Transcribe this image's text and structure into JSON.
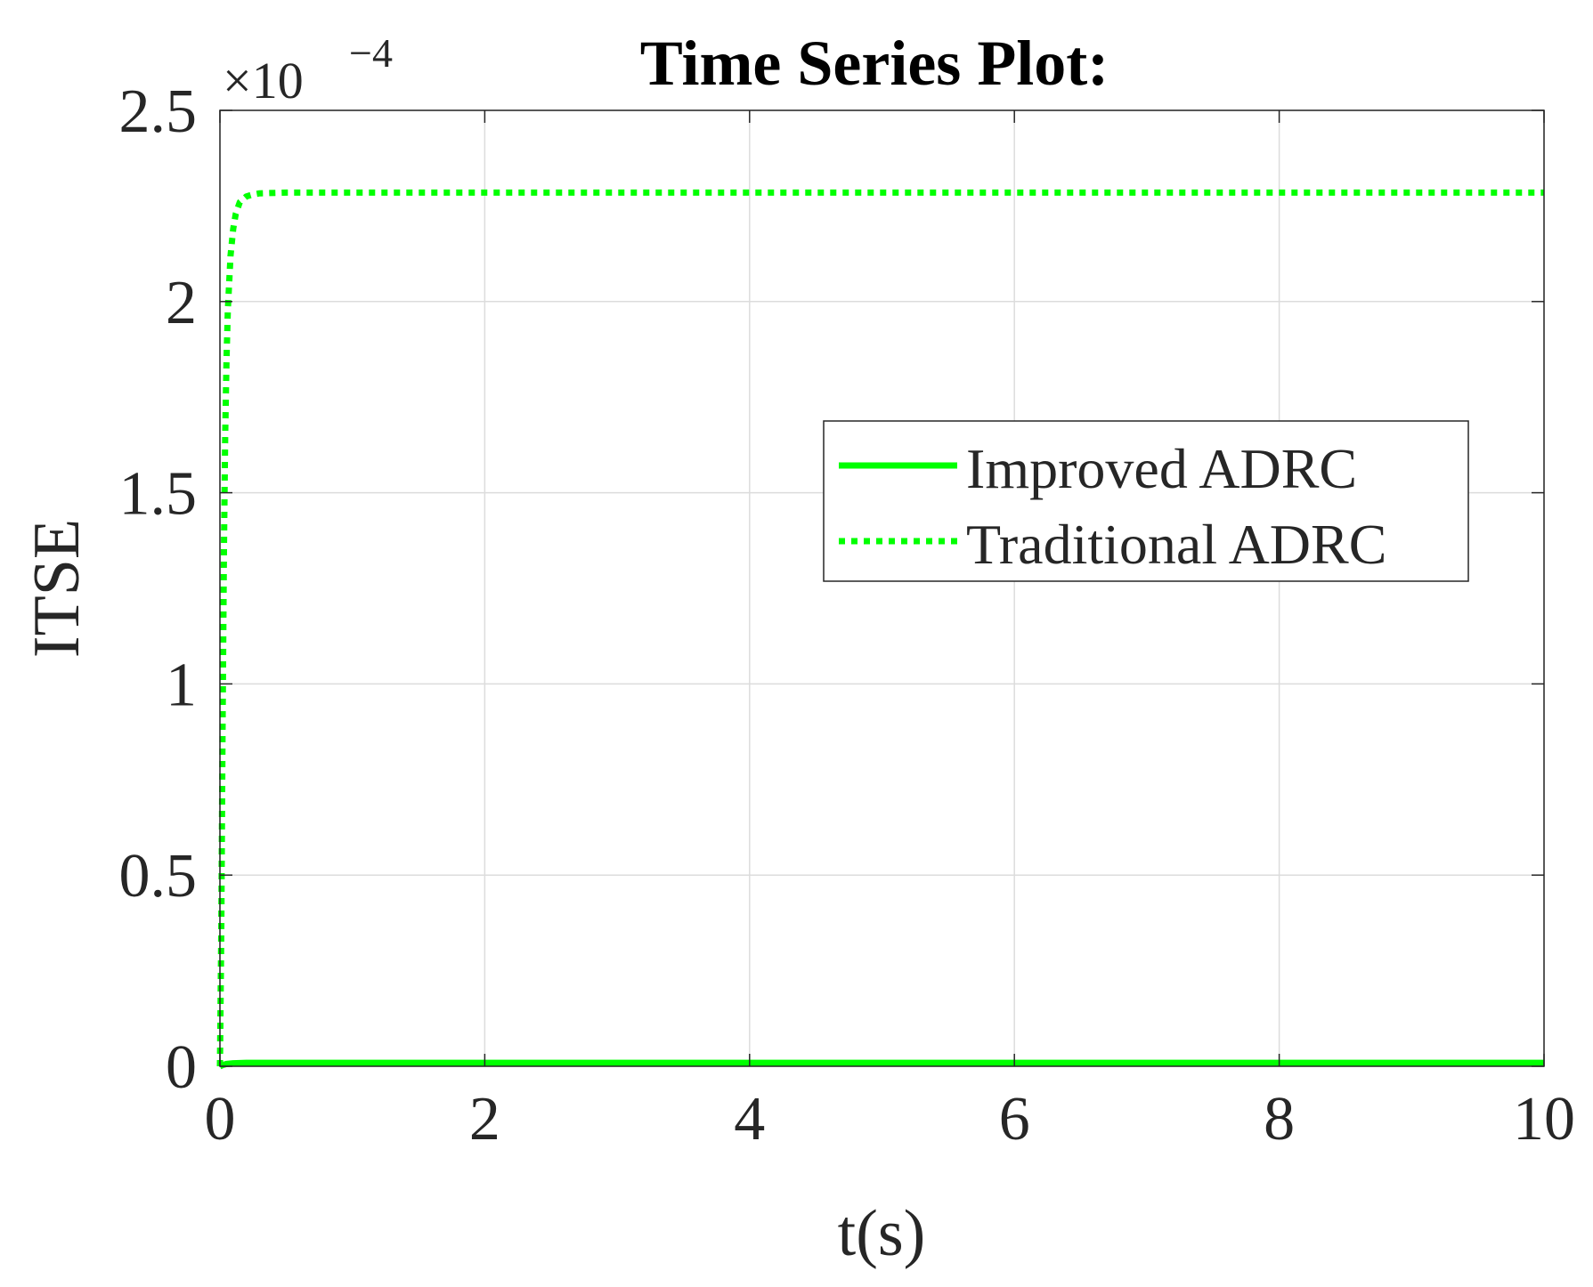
{
  "chart_data": {
    "type": "line",
    "title": "Time Series Plot:",
    "xlabel": "t(s)",
    "ylabel": "ITSE",
    "y_exponent_base": "×10",
    "y_exponent_power": "−4",
    "xlim": [
      0,
      10
    ],
    "ylim": [
      0,
      2.5
    ],
    "x_ticks": [
      0,
      2,
      4,
      6,
      8,
      10
    ],
    "x_tick_labels": [
      "0",
      "2",
      "4",
      "6",
      "8",
      "10"
    ],
    "y_ticks": [
      0,
      0.5,
      1,
      1.5,
      2,
      2.5
    ],
    "y_tick_labels": [
      "0",
      "0.5",
      "1",
      "1.5",
      "2",
      "2.5"
    ],
    "grid": true,
    "legend_position": "right-center",
    "series": [
      {
        "name": "Improved ADRC",
        "color": "#00ff00",
        "line_style": "solid",
        "x": [
          0,
          0.02,
          0.05,
          0.1,
          0.2,
          0.5,
          1,
          2,
          4,
          6,
          8,
          10
        ],
        "y": [
          0,
          0.003,
          0.006,
          0.008,
          0.009,
          0.009,
          0.009,
          0.009,
          0.009,
          0.009,
          0.009,
          0.009
        ]
      },
      {
        "name": "Traditional ADRC",
        "color": "#00ff00",
        "line_style": "dotted",
        "x": [
          0,
          0.01,
          0.02,
          0.03,
          0.04,
          0.05,
          0.06,
          0.08,
          0.1,
          0.12,
          0.15,
          0.2,
          0.25,
          0.3,
          0.5,
          1,
          2,
          4,
          6,
          8,
          10
        ],
        "y": [
          0,
          0.35,
          0.9,
          1.35,
          1.65,
          1.85,
          1.98,
          2.12,
          2.19,
          2.23,
          2.26,
          2.275,
          2.28,
          2.283,
          2.285,
          2.285,
          2.285,
          2.285,
          2.285,
          2.285,
          2.285
        ]
      }
    ]
  }
}
